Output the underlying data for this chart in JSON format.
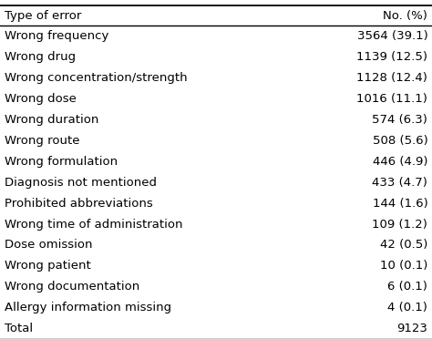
{
  "header": [
    "Type of error",
    "No. (%)"
  ],
  "rows": [
    [
      "Wrong frequency",
      "3564 (39.1)"
    ],
    [
      "Wrong drug",
      "1139 (12.5)"
    ],
    [
      "Wrong concentration/strength",
      "1128 (12.4)"
    ],
    [
      "Wrong dose",
      "1016 (11.1)"
    ],
    [
      "Wrong duration",
      "574 (6.3)"
    ],
    [
      "Wrong route",
      "508 (5.6)"
    ],
    [
      "Wrong formulation",
      "446 (4.9)"
    ],
    [
      "Diagnosis not mentioned",
      "433 (4.7)"
    ],
    [
      "Prohibited abbreviations",
      "144 (1.6)"
    ],
    [
      "Wrong time of administration",
      "109 (1.2)"
    ],
    [
      "Dose omission",
      "42 (0.5)"
    ],
    [
      "Wrong patient",
      "10 (0.1)"
    ],
    [
      "Wrong documentation",
      "6 (0.1)"
    ],
    [
      "Allergy information missing",
      "4 (0.1)"
    ],
    [
      "Total",
      "9123"
    ]
  ],
  "bg_color": "#ffffff",
  "header_fontsize": 9.5,
  "row_fontsize": 9.5,
  "figsize": [
    4.74,
    3.72
  ],
  "dpi": 100
}
